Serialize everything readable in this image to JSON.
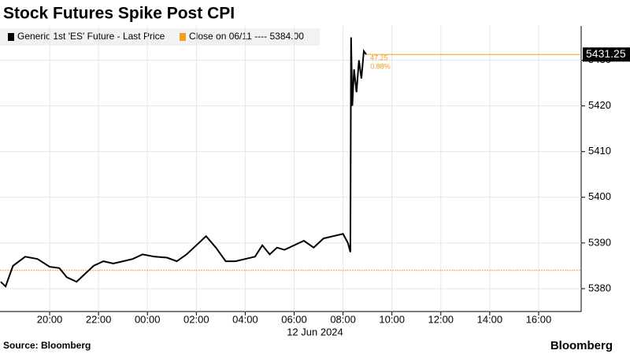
{
  "chart_data": {
    "type": "line",
    "title": "Stock Futures Spike Post CPI",
    "x_label": "12 Jun 2024",
    "source": "Source: Bloomberg",
    "brand": "Bloomberg",
    "series": [
      {
        "name": "Generic 1st 'ES' Future - Last Price",
        "color": "#000000",
        "x": [
          -6.0,
          -5.8,
          -5.5,
          -5.0,
          -4.5,
          -4.0,
          -3.6,
          -3.3,
          -2.9,
          -2.6,
          -2.2,
          -1.8,
          -1.4,
          -1.0,
          -0.6,
          -0.2,
          0.3,
          0.8,
          1.2,
          1.6,
          2.0,
          2.4,
          2.8,
          3.2,
          3.6,
          4.0,
          4.4,
          4.7,
          5.0,
          5.3,
          5.6,
          6.0,
          6.4,
          6.8,
          7.2,
          7.6,
          8.0,
          8.2,
          8.3,
          8.33,
          8.38,
          8.45,
          8.55,
          8.65,
          8.75,
          8.85,
          8.95
        ],
        "values": [
          5381.5,
          5380.5,
          5385,
          5387,
          5386.5,
          5384.8,
          5384.5,
          5382.5,
          5381.5,
          5383,
          5385,
          5386,
          5385.5,
          5386,
          5386.5,
          5387.5,
          5387,
          5386.8,
          5386,
          5387.5,
          5389.5,
          5391.5,
          5389,
          5386,
          5386,
          5386.5,
          5387,
          5389.5,
          5387.5,
          5389,
          5388.5,
          5389.5,
          5390.5,
          5389,
          5391,
          5391.5,
          5392,
          5390,
          5388,
          5435,
          5420,
          5428,
          5423,
          5430,
          5426,
          5432,
          5431.25
        ]
      }
    ],
    "last_label": "5431.25",
    "close_legend": "Close on 06/11 ---- 5384.00",
    "close_value": 5384,
    "close_color": "#f0a020",
    "change_labels": [
      "47.25",
      "0.88%"
    ],
    "xlim": [
      -6.03,
      17.74
    ],
    "xticks": [
      {
        "value": -4,
        "label": "20:00"
      },
      {
        "value": -2,
        "label": "22:00"
      },
      {
        "value": 0,
        "label": "00:00"
      },
      {
        "value": 2,
        "label": "02:00"
      },
      {
        "value": 4,
        "label": "04:00"
      },
      {
        "value": 6,
        "label": "06:00"
      },
      {
        "value": 8,
        "label": "08:00"
      },
      {
        "value": 10,
        "label": "10:00"
      },
      {
        "value": 12,
        "label": "12:00"
      },
      {
        "value": 14,
        "label": "14:00"
      },
      {
        "value": 16,
        "label": "16:00"
      }
    ],
    "ylim": [
      5375,
      5437.5
    ],
    "yticks": [
      5380,
      5390,
      5400,
      5410,
      5420,
      5430
    ]
  }
}
